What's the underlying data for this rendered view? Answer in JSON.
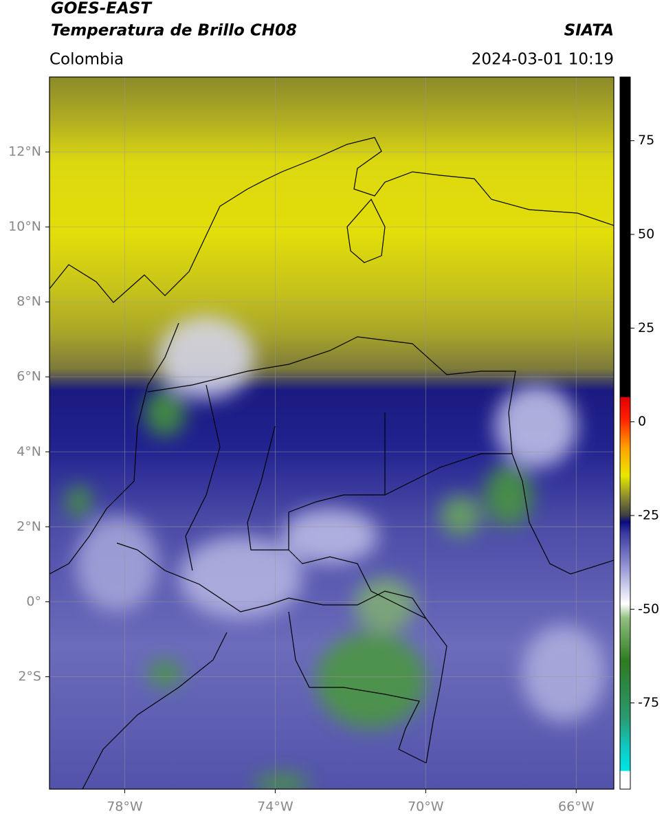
{
  "header": {
    "title": "GOES-EAST",
    "subtitle": "Temperatura de Brillo CH08",
    "source": "SIATA",
    "region": "Colombia",
    "timestamp": "2024-03-01 10:19"
  },
  "map": {
    "xlim": [
      -80,
      -65
    ],
    "ylim": [
      -5,
      14
    ],
    "xticks": [
      {
        "value": -78,
        "label": "78°W"
      },
      {
        "value": -74,
        "label": "74°W"
      },
      {
        "value": -70,
        "label": "70°W"
      },
      {
        "value": -66,
        "label": "66°W"
      }
    ],
    "yticks": [
      {
        "value": 12,
        "label": "12°N"
      },
      {
        "value": 10,
        "label": "10°N"
      },
      {
        "value": 8,
        "label": "8°N"
      },
      {
        "value": 6,
        "label": "6°N"
      },
      {
        "value": 4,
        "label": "4°N"
      },
      {
        "value": 2,
        "label": "2°N"
      },
      {
        "value": 0,
        "label": "0°"
      },
      {
        "value": -2,
        "label": "2°S"
      }
    ],
    "grid": true
  },
  "colorbar": {
    "lim": [
      -98,
      92
    ],
    "ticks": [
      75,
      50,
      25,
      0,
      -25,
      -50,
      -75
    ]
  }
}
